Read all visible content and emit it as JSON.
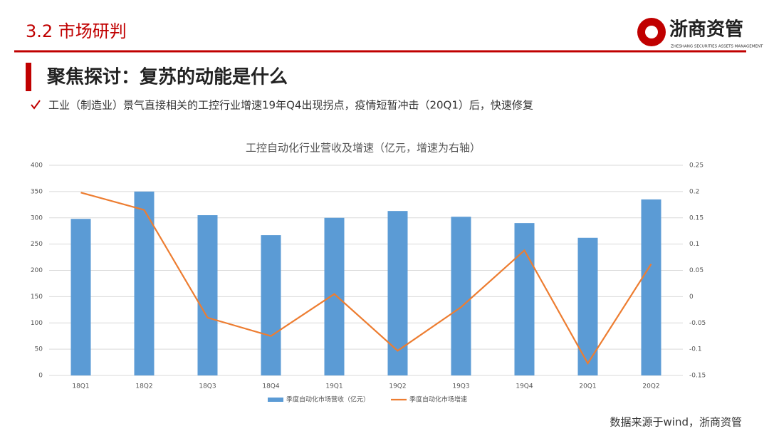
{
  "header": {
    "title": "3.2 市场研判",
    "logo": "浙商资管",
    "logo_sub": "ZHESHANG SECURITIES ASSETS MANAGEMENT"
  },
  "heading": "聚焦探讨：复苏的动能是什么",
  "bullet": "工业（制造业）景气直接相关的工控行业增速19年Q4出现拐点，疫情短暂冲击（20Q1）后，快速修复",
  "chart_data": {
    "type": "bar",
    "title": "工控自动化行业营收及增速（亿元，增速为右轴）",
    "categories": [
      "18Q1",
      "18Q2",
      "18Q3",
      "18Q4",
      "19Q1",
      "19Q2",
      "19Q3",
      "19Q4",
      "20Q1",
      "20Q2"
    ],
    "series": [
      {
        "name": "季度自动化市场营收（亿元）",
        "type": "bar",
        "color": "#5b9bd5",
        "values": [
          298,
          350,
          305,
          267,
          300,
          313,
          302,
          290,
          262,
          335
        ]
      },
      {
        "name": "季度自动化市场增速",
        "type": "line",
        "axis": "y2",
        "color": "#ed7d31",
        "values": [
          0.198,
          0.165,
          -0.04,
          -0.075,
          0.005,
          -0.103,
          -0.02,
          0.088,
          -0.127,
          0.062
        ]
      }
    ],
    "ylim": [
      0,
      400
    ],
    "yticks": [
      0,
      50,
      100,
      150,
      200,
      250,
      300,
      350,
      400
    ],
    "y2lim": [
      -0.15,
      0.25
    ],
    "y2ticks": [
      -0.15,
      -0.1,
      -0.05,
      0,
      0.05,
      0.1,
      0.15,
      0.2,
      0.25
    ],
    "grid": true,
    "legend": "bottom"
  },
  "source": "数据来源于wind，浙商资管"
}
